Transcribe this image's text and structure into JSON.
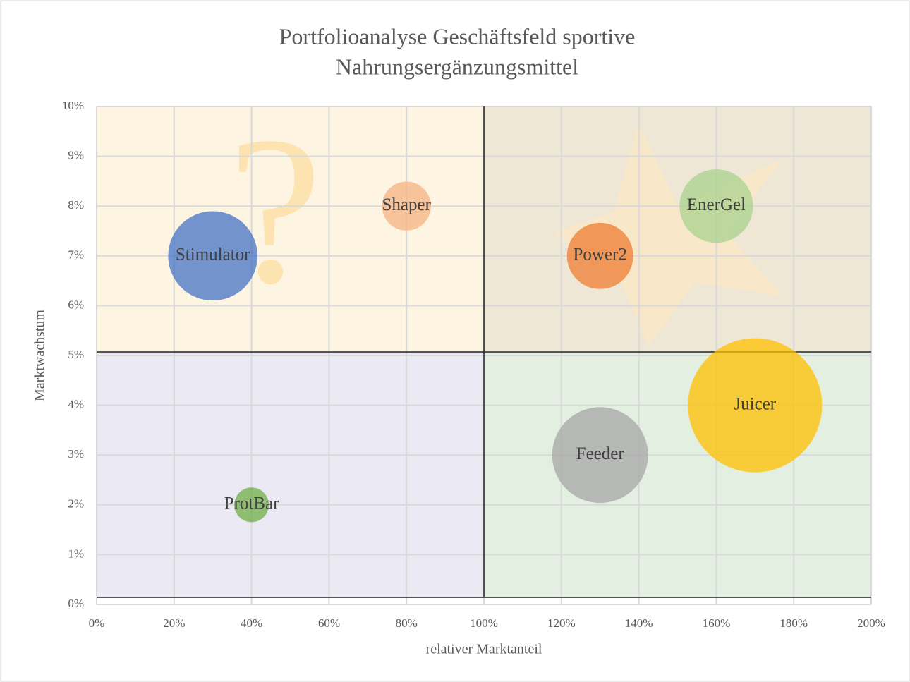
{
  "chart_data": {
    "type": "bubble",
    "title": [
      "Portfolioanalyse Geschäftsfeld sportive",
      "Nahrungsergänzungsmittel"
    ],
    "x_label": "relativer Marktanteil",
    "y_label": "Marktwachstum",
    "xlim": [
      0,
      200
    ],
    "ylim": [
      0,
      10
    ],
    "xticks": [
      {
        "value": 0,
        "label": "0%"
      },
      {
        "value": 20,
        "label": "20%"
      },
      {
        "value": 40,
        "label": "40%"
      },
      {
        "value": 60,
        "label": "60%"
      },
      {
        "value": 80,
        "label": "80%"
      },
      {
        "value": 100,
        "label": "100%"
      },
      {
        "value": 120,
        "label": "120%"
      },
      {
        "value": 140,
        "label": "140%"
      },
      {
        "value": 160,
        "label": "160%"
      },
      {
        "value": 180,
        "label": "180%"
      },
      {
        "value": 200,
        "label": "200%"
      }
    ],
    "yticks": [
      {
        "value": 0,
        "label": "0%"
      },
      {
        "value": 1,
        "label": "1%"
      },
      {
        "value": 2,
        "label": "2%"
      },
      {
        "value": 3,
        "label": "3%"
      },
      {
        "value": 4,
        "label": "4%"
      },
      {
        "value": 5,
        "label": "5%"
      },
      {
        "value": 6,
        "label": "6%"
      },
      {
        "value": 7,
        "label": "7%"
      },
      {
        "value": 8,
        "label": "8%"
      },
      {
        "value": 9,
        "label": "9%"
      },
      {
        "value": 10,
        "label": "10%"
      }
    ],
    "grid": true,
    "series": [
      {
        "name": "Stimulator",
        "color": "#4472c4",
        "x": 30,
        "y": 7,
        "size": 40
      },
      {
        "name": "Shaper",
        "color": "#f4b183",
        "x": 80,
        "y": 8,
        "size": 12
      },
      {
        "name": "Power2",
        "color": "#ed7d31",
        "x": 130,
        "y": 7,
        "size": 22
      },
      {
        "name": "EnerGel",
        "color": "#a9d18e",
        "x": 160,
        "y": 8,
        "size": 27
      },
      {
        "name": "Juicer",
        "color": "#ffc000",
        "x": 170,
        "y": 4,
        "size": 90
      },
      {
        "name": "Feeder",
        "color": "#a5a5a5",
        "x": 130,
        "y": 3,
        "size": 46
      },
      {
        "name": "ProtBar",
        "color": "#70ad47",
        "x": 40,
        "y": 2,
        "size": 6
      }
    ]
  }
}
